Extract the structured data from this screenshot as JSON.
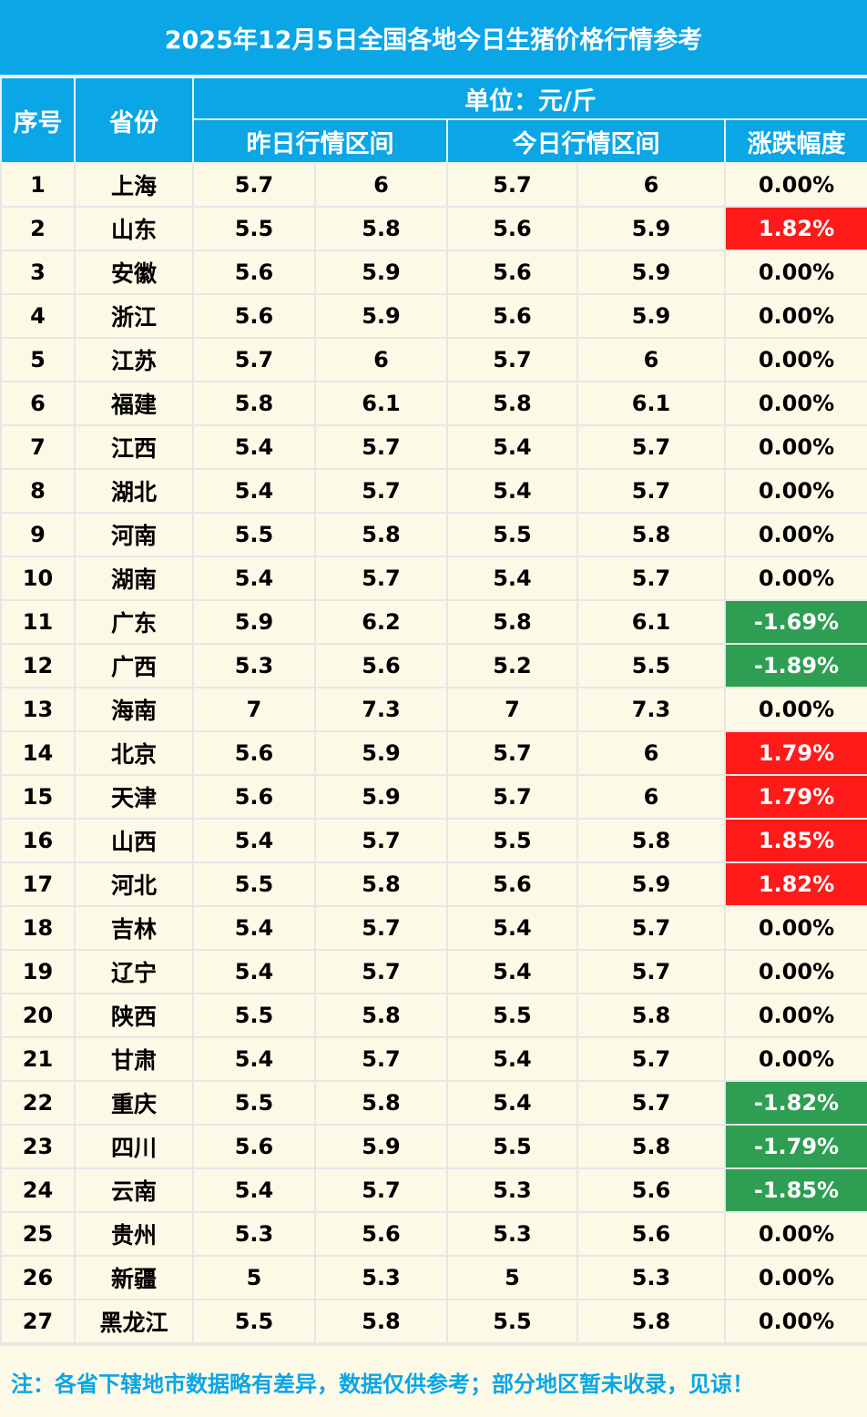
{
  "title": "2025年12月5日全国各地今日生猪价格行情参考",
  "header": {
    "col_index": "序号",
    "col_province": "省份",
    "unit": "单位：元/斤",
    "yesterday": "昨日行情区间",
    "today": "今日行情区间",
    "change": "涨跌幅度"
  },
  "rows": [
    {
      "no": "1",
      "province": "上海",
      "y_low": "5.7",
      "y_high": "6",
      "t_low": "5.7",
      "t_high": "6",
      "change": "0.00%",
      "trend": "flat"
    },
    {
      "no": "2",
      "province": "山东",
      "y_low": "5.5",
      "y_high": "5.8",
      "t_low": "5.6",
      "t_high": "5.9",
      "change": "1.82%",
      "trend": "up"
    },
    {
      "no": "3",
      "province": "安徽",
      "y_low": "5.6",
      "y_high": "5.9",
      "t_low": "5.6",
      "t_high": "5.9",
      "change": "0.00%",
      "trend": "flat"
    },
    {
      "no": "4",
      "province": "浙江",
      "y_low": "5.6",
      "y_high": "5.9",
      "t_low": "5.6",
      "t_high": "5.9",
      "change": "0.00%",
      "trend": "flat"
    },
    {
      "no": "5",
      "province": "江苏",
      "y_low": "5.7",
      "y_high": "6",
      "t_low": "5.7",
      "t_high": "6",
      "change": "0.00%",
      "trend": "flat"
    },
    {
      "no": "6",
      "province": "福建",
      "y_low": "5.8",
      "y_high": "6.1",
      "t_low": "5.8",
      "t_high": "6.1",
      "change": "0.00%",
      "trend": "flat"
    },
    {
      "no": "7",
      "province": "江西",
      "y_low": "5.4",
      "y_high": "5.7",
      "t_low": "5.4",
      "t_high": "5.7",
      "change": "0.00%",
      "trend": "flat"
    },
    {
      "no": "8",
      "province": "湖北",
      "y_low": "5.4",
      "y_high": "5.7",
      "t_low": "5.4",
      "t_high": "5.7",
      "change": "0.00%",
      "trend": "flat"
    },
    {
      "no": "9",
      "province": "河南",
      "y_low": "5.5",
      "y_high": "5.8",
      "t_low": "5.5",
      "t_high": "5.8",
      "change": "0.00%",
      "trend": "flat"
    },
    {
      "no": "10",
      "province": "湖南",
      "y_low": "5.4",
      "y_high": "5.7",
      "t_low": "5.4",
      "t_high": "5.7",
      "change": "0.00%",
      "trend": "flat"
    },
    {
      "no": "11",
      "province": "广东",
      "y_low": "5.9",
      "y_high": "6.2",
      "t_low": "5.8",
      "t_high": "6.1",
      "change": "-1.69%",
      "trend": "down"
    },
    {
      "no": "12",
      "province": "广西",
      "y_low": "5.3",
      "y_high": "5.6",
      "t_low": "5.2",
      "t_high": "5.5",
      "change": "-1.89%",
      "trend": "down"
    },
    {
      "no": "13",
      "province": "海南",
      "y_low": "7",
      "y_high": "7.3",
      "t_low": "7",
      "t_high": "7.3",
      "change": "0.00%",
      "trend": "flat"
    },
    {
      "no": "14",
      "province": "北京",
      "y_low": "5.6",
      "y_high": "5.9",
      "t_low": "5.7",
      "t_high": "6",
      "change": "1.79%",
      "trend": "up"
    },
    {
      "no": "15",
      "province": "天津",
      "y_low": "5.6",
      "y_high": "5.9",
      "t_low": "5.7",
      "t_high": "6",
      "change": "1.79%",
      "trend": "up"
    },
    {
      "no": "16",
      "province": "山西",
      "y_low": "5.4",
      "y_high": "5.7",
      "t_low": "5.5",
      "t_high": "5.8",
      "change": "1.85%",
      "trend": "up"
    },
    {
      "no": "17",
      "province": "河北",
      "y_low": "5.5",
      "y_high": "5.8",
      "t_low": "5.6",
      "t_high": "5.9",
      "change": "1.82%",
      "trend": "up"
    },
    {
      "no": "18",
      "province": "吉林",
      "y_low": "5.4",
      "y_high": "5.7",
      "t_low": "5.4",
      "t_high": "5.7",
      "change": "0.00%",
      "trend": "flat"
    },
    {
      "no": "19",
      "province": "辽宁",
      "y_low": "5.4",
      "y_high": "5.7",
      "t_low": "5.4",
      "t_high": "5.7",
      "change": "0.00%",
      "trend": "flat"
    },
    {
      "no": "20",
      "province": "陕西",
      "y_low": "5.5",
      "y_high": "5.8",
      "t_low": "5.5",
      "t_high": "5.8",
      "change": "0.00%",
      "trend": "flat"
    },
    {
      "no": "21",
      "province": "甘肃",
      "y_low": "5.4",
      "y_high": "5.7",
      "t_low": "5.4",
      "t_high": "5.7",
      "change": "0.00%",
      "trend": "flat"
    },
    {
      "no": "22",
      "province": "重庆",
      "y_low": "5.5",
      "y_high": "5.8",
      "t_low": "5.4",
      "t_high": "5.7",
      "change": "-1.82%",
      "trend": "down"
    },
    {
      "no": "23",
      "province": "四川",
      "y_low": "5.6",
      "y_high": "5.9",
      "t_low": "5.5",
      "t_high": "5.8",
      "change": "-1.79%",
      "trend": "down"
    },
    {
      "no": "24",
      "province": "云南",
      "y_low": "5.4",
      "y_high": "5.7",
      "t_low": "5.3",
      "t_high": "5.6",
      "change": "-1.85%",
      "trend": "down"
    },
    {
      "no": "25",
      "province": "贵州",
      "y_low": "5.3",
      "y_high": "5.6",
      "t_low": "5.3",
      "t_high": "5.6",
      "change": "0.00%",
      "trend": "flat"
    },
    {
      "no": "26",
      "province": "新疆",
      "y_low": "5",
      "y_high": "5.3",
      "t_low": "5",
      "t_high": "5.3",
      "change": "0.00%",
      "trend": "flat"
    },
    {
      "no": "27",
      "province": "黑龙江",
      "y_low": "5.5",
      "y_high": "5.8",
      "t_low": "5.5",
      "t_high": "5.8",
      "change": "0.00%",
      "trend": "flat"
    }
  ],
  "colors": {
    "header_bg": "#0aa6e6",
    "row_bg": "#fdf9e7",
    "up": "#ff1a1a",
    "down": "#2e9e52"
  },
  "footer": "注：各省下辖地市数据略有差异，数据仅供参考；部分地区暂未收录，见谅！"
}
